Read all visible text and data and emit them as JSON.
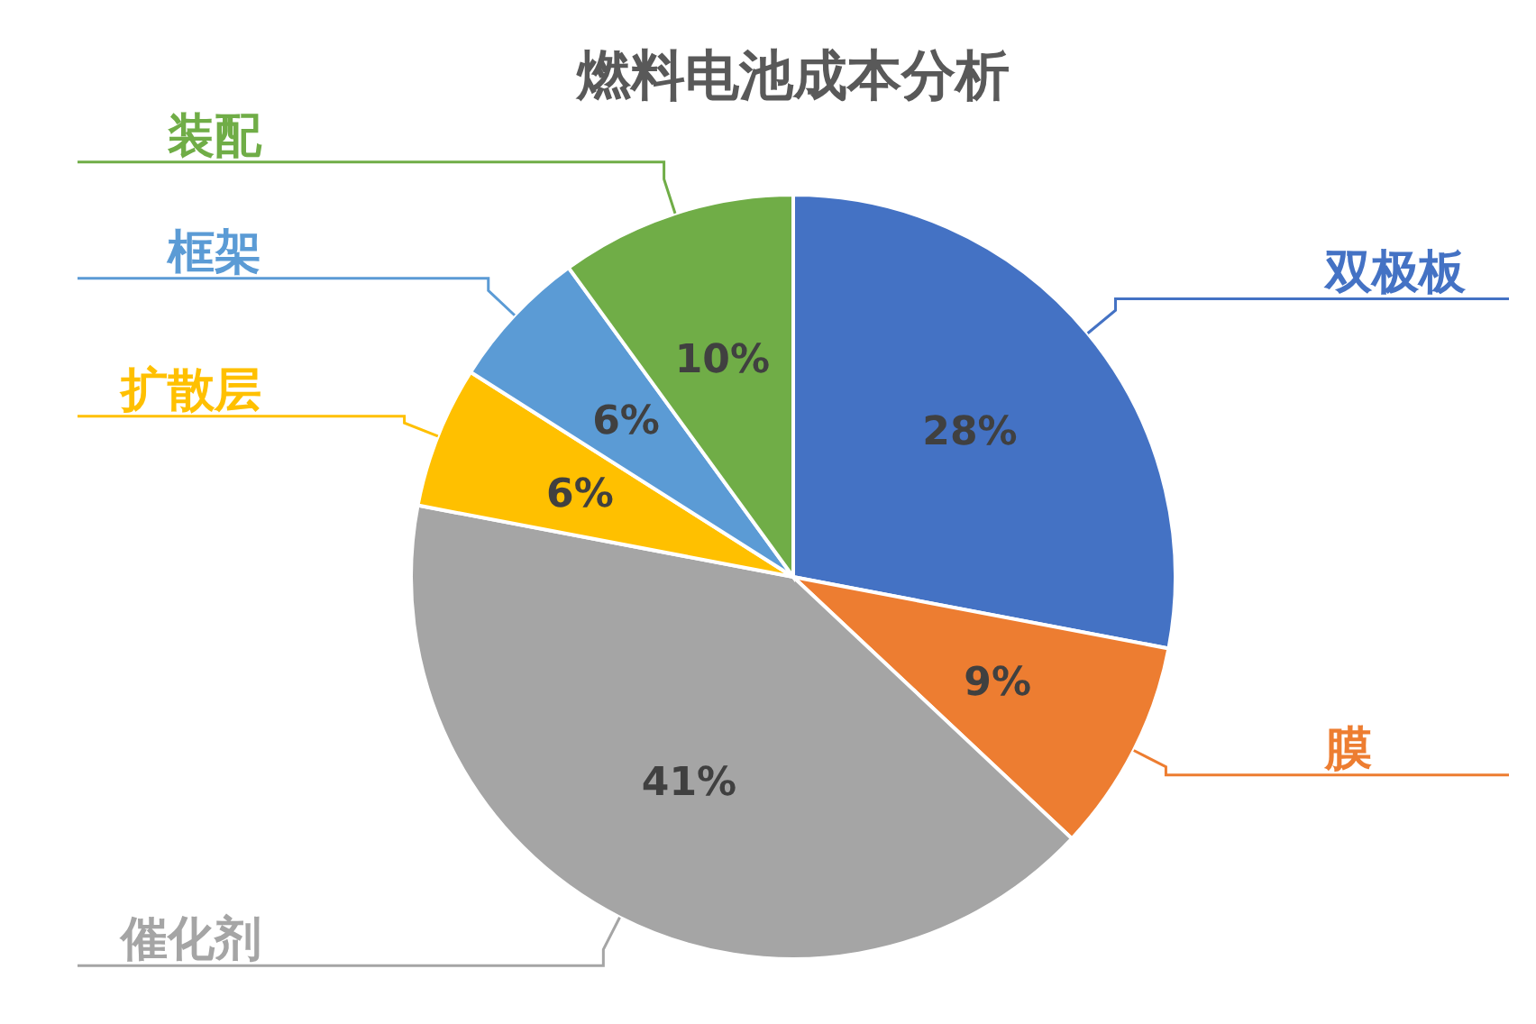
{
  "chart_data": {
    "type": "pie",
    "title": "燃料电池成本分析",
    "categories": [
      "双极板",
      "膜",
      "催化剂",
      "扩散层",
      "框架",
      "装配"
    ],
    "values": [
      28,
      9,
      41,
      6,
      6,
      10
    ],
    "value_labels": [
      "28%",
      "9%",
      "41%",
      "6%",
      "6%",
      "10%"
    ],
    "colors": [
      "#4472c4",
      "#ed7d31",
      "#a5a5a5",
      "#ffc000",
      "#5b9bd5",
      "#70ad47"
    ]
  }
}
